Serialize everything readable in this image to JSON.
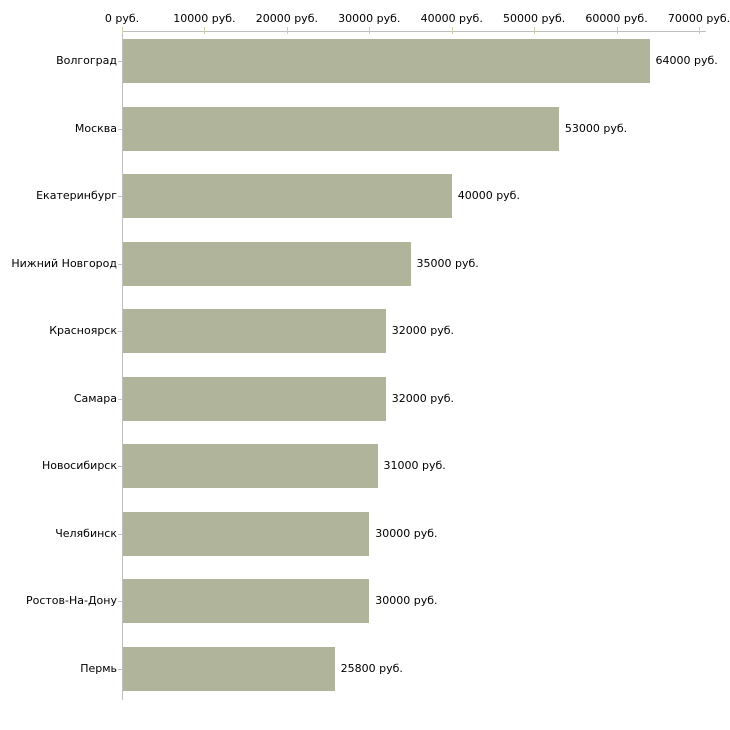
{
  "chart_data": {
    "type": "bar",
    "orientation": "horizontal",
    "title": "",
    "xlabel": "",
    "ylabel": "",
    "unit_suffix": "руб.",
    "categories": [
      "Волгоград",
      "Москва",
      "Екатеринбург",
      "Нижний Новгород",
      "Красноярск",
      "Самара",
      "Новосибирск",
      "Челябинск",
      "Ростов-На-Дону",
      "Пермь"
    ],
    "values": [
      64000,
      53000,
      40000,
      35000,
      32000,
      32000,
      31000,
      30000,
      30000,
      25800
    ],
    "value_labels": [
      "64000 руб.",
      "53000 руб.",
      "40000 руб.",
      "35000 руб.",
      "32000 руб.",
      "32000 руб.",
      "31000 руб.",
      "30000 руб.",
      "30000 руб.",
      "25800 руб."
    ],
    "x_ticks": [
      0,
      10000,
      20000,
      30000,
      40000,
      50000,
      60000,
      70000
    ],
    "x_tick_labels": [
      "0 руб.",
      "10000 руб.",
      "20000 руб.",
      "30000 руб.",
      "40000 руб.",
      "50000 руб.",
      "60000 руб.",
      "70000 руб."
    ],
    "xlim": [
      0,
      70000
    ],
    "grid": false,
    "legend": null,
    "tick_label_position": "top",
    "colors": {
      "bar_fill": "#afb49a",
      "axis_line": "#bfbfbf",
      "axis_tick": "#cdd0a8",
      "text": "#000000",
      "background": "#ffffff"
    }
  }
}
